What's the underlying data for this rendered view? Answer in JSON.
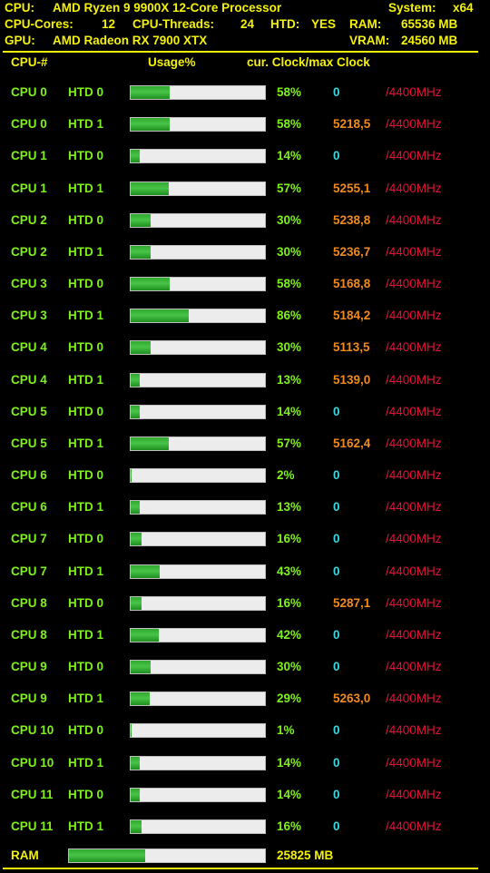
{
  "header": {
    "cpu_label": "CPU:",
    "cpu_name": "AMD Ryzen 9 9900X 12-Core Processor",
    "system_label": "System:",
    "system_value": "x64",
    "cores_label": "CPU-Cores:",
    "cores_value": "12",
    "threads_label": "CPU-Threads:",
    "threads_value": "24",
    "htd_label": "HTD:",
    "htd_value": "YES",
    "ram_label": "RAM:",
    "ram_value": "65536 MB",
    "gpu_label": "GPU:",
    "gpu_name": "AMD Radeon RX 7900 XTX",
    "vram_label": "VRAM:",
    "vram_value": "24560 MB"
  },
  "columns": {
    "cpu": "CPU-#",
    "usage": "Usage%",
    "clock": "cur. Clock/max Clock"
  },
  "colors": {
    "header_text": "#f4f10a",
    "label_green": "#7ef01a",
    "clock_zero": "#39d6e0",
    "clock_value": "#f08a1e",
    "max_clock": "#e8103a",
    "bar_fill": "#38b338",
    "bar_bg": "#ececec"
  },
  "rows": [
    {
      "cpu": "CPU 0",
      "htd": "HTD 0",
      "usage": 58,
      "usage_text": "58%",
      "clock": "0",
      "max": "/4400MHz"
    },
    {
      "cpu": "CPU 0",
      "htd": "HTD 1",
      "usage": 58,
      "usage_text": "58%",
      "clock": "5218,5",
      "max": "/4400MHz"
    },
    {
      "cpu": "CPU 1",
      "htd": "HTD 0",
      "usage": 14,
      "usage_text": "14%",
      "clock": "0",
      "max": "/4400MHz"
    },
    {
      "cpu": "CPU 1",
      "htd": "HTD 1",
      "usage": 57,
      "usage_text": "57%",
      "clock": "5255,1",
      "max": "/4400MHz"
    },
    {
      "cpu": "CPU 2",
      "htd": "HTD 0",
      "usage": 30,
      "usage_text": "30%",
      "clock": "5238,8",
      "max": "/4400MHz"
    },
    {
      "cpu": "CPU 2",
      "htd": "HTD 1",
      "usage": 30,
      "usage_text": "30%",
      "clock": "5236,7",
      "max": "/4400MHz"
    },
    {
      "cpu": "CPU 3",
      "htd": "HTD 0",
      "usage": 58,
      "usage_text": "58%",
      "clock": "5168,8",
      "max": "/4400MHz"
    },
    {
      "cpu": "CPU 3",
      "htd": "HTD 1",
      "usage": 86,
      "usage_text": "86%",
      "clock": "5184,2",
      "max": "/4400MHz"
    },
    {
      "cpu": "CPU 4",
      "htd": "HTD 0",
      "usage": 30,
      "usage_text": "30%",
      "clock": "5113,5",
      "max": "/4400MHz"
    },
    {
      "cpu": "CPU 4",
      "htd": "HTD 1",
      "usage": 13,
      "usage_text": "13%",
      "clock": "5139,0",
      "max": "/4400MHz"
    },
    {
      "cpu": "CPU 5",
      "htd": "HTD 0",
      "usage": 14,
      "usage_text": "14%",
      "clock": "0",
      "max": "/4400MHz"
    },
    {
      "cpu": "CPU 5",
      "htd": "HTD 1",
      "usage": 57,
      "usage_text": "57%",
      "clock": "5162,4",
      "max": "/4400MHz"
    },
    {
      "cpu": "CPU 6",
      "htd": "HTD 0",
      "usage": 2,
      "usage_text": "2%",
      "clock": "0",
      "max": "/4400MHz"
    },
    {
      "cpu": "CPU 6",
      "htd": "HTD 1",
      "usage": 13,
      "usage_text": "13%",
      "clock": "0",
      "max": "/4400MHz"
    },
    {
      "cpu": "CPU 7",
      "htd": "HTD 0",
      "usage": 16,
      "usage_text": "16%",
      "clock": "0",
      "max": "/4400MHz"
    },
    {
      "cpu": "CPU 7",
      "htd": "HTD 1",
      "usage": 43,
      "usage_text": "43%",
      "clock": "0",
      "max": "/4400MHz"
    },
    {
      "cpu": "CPU 8",
      "htd": "HTD 0",
      "usage": 16,
      "usage_text": "16%",
      "clock": "5287,1",
      "max": "/4400MHz"
    },
    {
      "cpu": "CPU 8",
      "htd": "HTD 1",
      "usage": 42,
      "usage_text": "42%",
      "clock": "0",
      "max": "/4400MHz"
    },
    {
      "cpu": "CPU 9",
      "htd": "HTD 0",
      "usage": 30,
      "usage_text": "30%",
      "clock": "0",
      "max": "/4400MHz"
    },
    {
      "cpu": "CPU 9",
      "htd": "HTD 1",
      "usage": 29,
      "usage_text": "29%",
      "clock": "5263,0",
      "max": "/4400MHz"
    },
    {
      "cpu": "CPU 10",
      "htd": "HTD 0",
      "usage": 1,
      "usage_text": "1%",
      "clock": "0",
      "max": "/4400MHz"
    },
    {
      "cpu": "CPU 10",
      "htd": "HTD 1",
      "usage": 14,
      "usage_text": "14%",
      "clock": "0",
      "max": "/4400MHz"
    },
    {
      "cpu": "CPU 11",
      "htd": "HTD 0",
      "usage": 14,
      "usage_text": "14%",
      "clock": "0",
      "max": "/4400MHz"
    },
    {
      "cpu": "CPU 11",
      "htd": "HTD 1",
      "usage": 16,
      "usage_text": "16%",
      "clock": "0",
      "max": "/4400MHz"
    }
  ],
  "ram": {
    "label": "RAM",
    "usage": 39,
    "value": "25825 MB"
  }
}
